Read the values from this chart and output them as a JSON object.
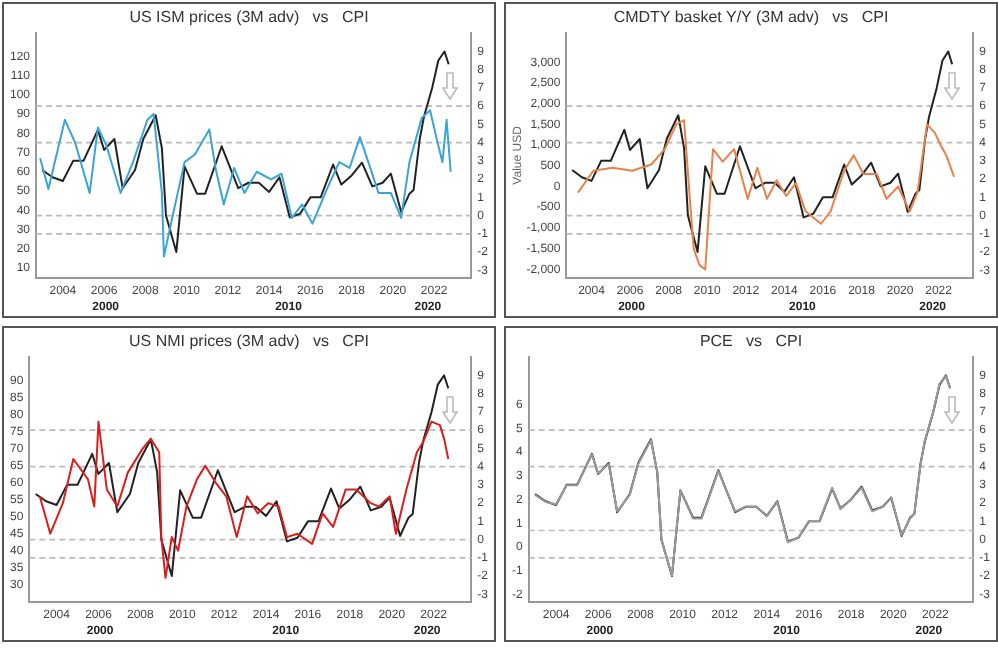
{
  "chart_data": [
    {
      "type": "line",
      "title": "US ISM prices (3M adv)   vs   CPI",
      "marker": "none",
      "xlim": [
        2002.7,
        2023.8
      ],
      "xticks": [
        2004,
        2006,
        2008,
        2010,
        2012,
        2014,
        2016,
        2018,
        2020,
        2022
      ],
      "annotations": [
        "2000",
        "2010",
        "2020"
      ],
      "ylim": [
        5,
        132
      ],
      "yticks": [
        10,
        20,
        30,
        40,
        50,
        60,
        70,
        80,
        90,
        100,
        110,
        120
      ],
      "y2lim": [
        -3.4,
        10
      ],
      "y2ticks": [
        -3,
        -2,
        -1,
        0,
        1,
        2,
        3,
        4,
        5,
        6,
        7,
        8,
        9
      ],
      "ref_lines": [
        {
          "axis": "y2",
          "value": 6,
          "color": "#bbbbbb",
          "line_style": "dashed"
        },
        {
          "axis": "y2",
          "value": 4,
          "color": "#bbbbbb",
          "line_style": "dashed"
        },
        {
          "axis": "y2",
          "value": 0,
          "color": "#bbbbbb",
          "line_style": "dashed"
        },
        {
          "axis": "y2",
          "value": -1,
          "color": "#bbbbbb",
          "line_style": "dashed"
        }
      ],
      "series": [
        {
          "color": "#3aa3d8",
          "x": [
            2002.9,
            2003.3,
            2004.1,
            2004.6,
            2005.3,
            2005.7,
            2006.1,
            2006.8,
            2007.4,
            2008.1,
            2008.4,
            2008.8,
            2008.9,
            2009.3,
            2009.9,
            2010.4,
            2011.1,
            2011.4,
            2011.8,
            2012.3,
            2012.8,
            2013.4,
            2014.1,
            2014.6,
            2015.1,
            2015.6,
            2016.1,
            2016.8,
            2017.4,
            2017.9,
            2018.4,
            2018.9,
            2019.3,
            2019.9,
            2020.4,
            2020.8,
            2021.4,
            2021.8,
            2022.1,
            2022.4,
            2022.6,
            2022.8
          ],
          "values": [
            67,
            51,
            87,
            75,
            49,
            83,
            74,
            49,
            65,
            87,
            90,
            49,
            16,
            36,
            65,
            69,
            82,
            62,
            43,
            62,
            49,
            60,
            56,
            59,
            36,
            43,
            33,
            51,
            65,
            62,
            78,
            62,
            49,
            49,
            36,
            65,
            88,
            92,
            78,
            65,
            87,
            60
          ]
        },
        {
          "color": "#222222",
          "axis": "y2",
          "x": [
            2003.0,
            2003.5,
            2004.0,
            2004.5,
            2005.0,
            2005.7,
            2006.0,
            2006.5,
            2006.9,
            2007.5,
            2007.9,
            2008.5,
            2008.8,
            2009.0,
            2009.5,
            2009.9,
            2010.5,
            2010.9,
            2011.7,
            2012.5,
            2013.0,
            2013.5,
            2014.0,
            2014.5,
            2015.0,
            2015.5,
            2016.0,
            2016.5,
            2017.1,
            2017.5,
            2018.0,
            2018.5,
            2019.0,
            2019.5,
            2019.9,
            2020.4,
            2020.8,
            2021.0,
            2021.3,
            2021.5,
            2021.9,
            2022.2,
            2022.5,
            2022.7
          ],
          "values": [
            2.5,
            2.1,
            1.9,
            3.0,
            3.0,
            4.7,
            3.6,
            4.2,
            1.5,
            2.5,
            4.2,
            5.5,
            3.7,
            0.0,
            -2.0,
            2.7,
            1.2,
            1.2,
            3.8,
            1.5,
            1.8,
            1.8,
            1.3,
            2.1,
            -0.1,
            0.1,
            1.0,
            1.0,
            2.8,
            1.7,
            2.2,
            2.9,
            1.6,
            1.8,
            2.3,
            0.2,
            1.2,
            1.4,
            4.2,
            5.4,
            7.0,
            8.5,
            9.0,
            8.3
          ]
        }
      ]
    },
    {
      "type": "line",
      "title": "CMDTY basket Y/Y (3M adv)   vs   CPI",
      "ylabel": "Value USD",
      "marker": "none",
      "xlim": [
        2002.7,
        2023.8
      ],
      "xticks": [
        2004,
        2006,
        2008,
        2010,
        2012,
        2014,
        2016,
        2018,
        2020,
        2022
      ],
      "annotations": [
        "2000",
        "2010",
        "2020"
      ],
      "ylim": [
        -2200,
        3700
      ],
      "yticks": [
        {
          "value": -2000,
          "label": "-2,000"
        },
        {
          "value": -1500,
          "label": "-1,500"
        },
        {
          "value": -1000,
          "label": "-1,000"
        },
        -500,
        0,
        500,
        {
          "value": 1000,
          "label": "1,000"
        },
        {
          "value": 1500,
          "label": "1,500"
        },
        {
          "value": 2000,
          "label": "2,000"
        },
        {
          "value": 2500,
          "label": "2,500"
        },
        {
          "value": 3000,
          "label": "3,000"
        }
      ],
      "y2lim": [
        -3.4,
        10
      ],
      "y2ticks": [
        -3,
        -2,
        -1,
        0,
        1,
        2,
        3,
        4,
        5,
        6,
        7,
        8,
        9
      ],
      "ref_lines": [
        {
          "axis": "y2",
          "value": 6,
          "color": "#bbbbbb",
          "line_style": "dashed"
        },
        {
          "axis": "y2",
          "value": 4,
          "color": "#bbbbbb",
          "line_style": "dashed"
        },
        {
          "axis": "y2",
          "value": 0,
          "color": "#bbbbbb",
          "line_style": "dashed"
        },
        {
          "axis": "y2",
          "value": -1,
          "color": "#bbbbbb",
          "line_style": "dashed"
        }
      ],
      "series": [
        {
          "color": "#e8824a",
          "x": [
            2003.3,
            2004.1,
            2005.1,
            2006.1,
            2007.1,
            2007.8,
            2008.4,
            2008.8,
            2009.1,
            2009.3,
            2009.6,
            2009.9,
            2010.3,
            2010.8,
            2011.4,
            2012.1,
            2012.6,
            2013.1,
            2013.6,
            2014.1,
            2014.6,
            2015.1,
            2015.9,
            2016.4,
            2017.1,
            2017.6,
            2018.1,
            2018.8,
            2019.3,
            2019.9,
            2020.5,
            2020.9,
            2021.4,
            2021.8,
            2022.1,
            2022.4,
            2022.8
          ],
          "values": [
            -150,
            380,
            450,
            380,
            530,
            900,
            1500,
            1600,
            -300,
            -1500,
            -1900,
            -2000,
            900,
            600,
            900,
            -300,
            450,
            -300,
            150,
            -230,
            80,
            -600,
            -900,
            -600,
            380,
            750,
            300,
            300,
            -300,
            0,
            -600,
            -150,
            1500,
            1300,
            1000,
            750,
            230
          ]
        },
        {
          "color": "#222222",
          "axis": "y2",
          "x": [
            2003.0,
            2003.5,
            2004.0,
            2004.5,
            2005.0,
            2005.7,
            2006.0,
            2006.5,
            2006.9,
            2007.5,
            2007.9,
            2008.5,
            2008.8,
            2009.0,
            2009.5,
            2009.9,
            2010.5,
            2010.9,
            2011.7,
            2012.5,
            2013.0,
            2013.5,
            2014.0,
            2014.5,
            2015.0,
            2015.5,
            2016.0,
            2016.5,
            2017.1,
            2017.5,
            2018.0,
            2018.5,
            2019.0,
            2019.5,
            2019.9,
            2020.4,
            2020.8,
            2021.0,
            2021.3,
            2021.5,
            2021.9,
            2022.2,
            2022.5,
            2022.7
          ],
          "values": [
            2.5,
            2.1,
            1.9,
            3.0,
            3.0,
            4.7,
            3.6,
            4.2,
            1.5,
            2.5,
            4.2,
            5.5,
            3.7,
            0.0,
            -2.0,
            2.7,
            1.2,
            1.2,
            3.8,
            1.5,
            1.8,
            1.8,
            1.3,
            2.1,
            -0.1,
            0.1,
            1.0,
            1.0,
            2.8,
            1.7,
            2.2,
            2.9,
            1.6,
            1.8,
            2.3,
            0.2,
            1.2,
            1.4,
            4.2,
            5.4,
            7.0,
            8.5,
            9.0,
            8.3
          ]
        }
      ]
    },
    {
      "type": "line",
      "title": "US NMI prices (3M adv)   vs   CPI",
      "marker": "none",
      "xlim": [
        2002.7,
        2023.8
      ],
      "xticks": [
        2004,
        2006,
        2008,
        2010,
        2012,
        2014,
        2016,
        2018,
        2020,
        2022
      ],
      "annotations": [
        "2000",
        "2010",
        "2020"
      ],
      "ylim": [
        25,
        97
      ],
      "yticks": [
        30,
        35,
        40,
        45,
        50,
        55,
        60,
        65,
        70,
        75,
        80,
        85,
        90
      ],
      "y2lim": [
        -3.4,
        10
      ],
      "y2ticks": [
        -3,
        -2,
        -1,
        0,
        1,
        2,
        3,
        4,
        5,
        6,
        7,
        8,
        9
      ],
      "ref_lines": [
        {
          "axis": "y2",
          "value": 6,
          "color": "#bbbbbb",
          "line_style": "dashed"
        },
        {
          "axis": "y2",
          "value": 4,
          "color": "#bbbbbb",
          "line_style": "dashed"
        },
        {
          "axis": "y2",
          "value": 0,
          "color": "#bbbbbb",
          "line_style": "dashed"
        },
        {
          "axis": "y2",
          "value": -1,
          "color": "#bbbbbb",
          "line_style": "dashed"
        }
      ],
      "series": [
        {
          "color": "#d91e1e",
          "x": [
            2003.2,
            2003.7,
            2004.3,
            2004.8,
            2005.5,
            2005.8,
            2006.0,
            2006.4,
            2006.9,
            2007.4,
            2008.1,
            2008.5,
            2008.9,
            2009.0,
            2009.2,
            2009.5,
            2009.8,
            2010.2,
            2010.7,
            2011.1,
            2011.6,
            2012.1,
            2012.6,
            2013.1,
            2013.6,
            2014.1,
            2014.6,
            2015.0,
            2015.5,
            2016.2,
            2016.7,
            2017.2,
            2017.8,
            2018.3,
            2019.0,
            2019.4,
            2019.9,
            2020.2,
            2020.7,
            2021.2,
            2021.5,
            2021.9,
            2022.3,
            2022.5,
            2022.7
          ],
          "values": [
            56,
            45,
            54,
            67,
            61,
            53,
            78,
            58,
            53,
            63,
            70,
            73,
            69,
            44,
            32,
            44,
            40,
            53,
            61,
            65,
            60,
            56,
            44,
            56,
            51,
            54,
            53,
            44,
            45,
            42,
            51,
            47,
            58,
            58,
            54,
            53,
            56,
            45,
            58,
            69,
            72,
            78,
            77,
            73,
            67
          ]
        },
        {
          "color": "#222222",
          "axis": "y2",
          "x": [
            2003.0,
            2003.5,
            2004.0,
            2004.5,
            2005.0,
            2005.7,
            2006.0,
            2006.5,
            2006.9,
            2007.5,
            2007.9,
            2008.5,
            2008.8,
            2009.0,
            2009.5,
            2009.9,
            2010.5,
            2010.9,
            2011.7,
            2012.5,
            2013.0,
            2013.5,
            2014.0,
            2014.5,
            2015.0,
            2015.5,
            2016.0,
            2016.5,
            2017.1,
            2017.5,
            2018.0,
            2018.5,
            2019.0,
            2019.5,
            2019.9,
            2020.4,
            2020.8,
            2021.0,
            2021.3,
            2021.5,
            2021.9,
            2022.2,
            2022.5,
            2022.7
          ],
          "values": [
            2.5,
            2.1,
            1.9,
            3.0,
            3.0,
            4.7,
            3.6,
            4.2,
            1.5,
            2.5,
            4.2,
            5.5,
            3.7,
            0.0,
            -2.0,
            2.7,
            1.2,
            1.2,
            3.8,
            1.5,
            1.8,
            1.8,
            1.3,
            2.1,
            -0.1,
            0.1,
            1.0,
            1.0,
            2.8,
            1.7,
            2.2,
            2.9,
            1.6,
            1.8,
            2.3,
            0.2,
            1.2,
            1.4,
            4.2,
            5.4,
            7.0,
            8.5,
            9.0,
            8.3
          ]
        }
      ]
    },
    {
      "type": "line",
      "title": "PCE   vs   CPI",
      "marker": "none",
      "xlim": [
        2002.7,
        2023.8
      ],
      "xticks": [
        2004,
        2006,
        2008,
        2010,
        2012,
        2014,
        2016,
        2018,
        2020,
        2022
      ],
      "annotations": [
        "2000",
        "2010",
        "2020"
      ],
      "ylim": [
        -2.3,
        8
      ],
      "yticks": [
        -2,
        -1,
        0,
        1,
        2,
        3,
        4,
        5,
        6
      ],
      "y2lim": [
        -3.4,
        10
      ],
      "y2ticks": [
        -3,
        -2,
        -1,
        0,
        1,
        2,
        3,
        4,
        5,
        6,
        7,
        8,
        9
      ],
      "ref_lines": [
        {
          "axis": "y2",
          "value": 6,
          "color": "#bbbbbb",
          "line_style": "dashed"
        },
        {
          "axis": "y2",
          "value": 4,
          "color": "#bbbbbb",
          "line_style": "dashed"
        },
        {
          "axis": "y2",
          "value": 0.5,
          "color": "#bbbbbb",
          "line_style": "dashed"
        },
        {
          "axis": "y2",
          "value": -1,
          "color": "#bbbbbb",
          "line_style": "dashed"
        }
      ],
      "series": [
        {
          "color": "#9a9a9a",
          "x": [
            2003.0,
            2003.5,
            2004.0,
            2004.5,
            2005.0,
            2005.7,
            2006.0,
            2006.5,
            2006.9,
            2007.5,
            2007.9,
            2008.5,
            2008.8,
            2009.0,
            2009.5,
            2009.9,
            2010.5,
            2010.9,
            2011.7,
            2012.5,
            2013.0,
            2013.5,
            2014.0,
            2014.5,
            2015.0,
            2015.5,
            2016.0,
            2016.5,
            2017.1,
            2017.5,
            2018.0,
            2018.5,
            2019.0,
            2019.5,
            2019.9,
            2020.4,
            2020.8,
            2021.0,
            2021.3,
            2021.5,
            2021.9,
            2022.2,
            2022.5,
            2022.7
          ],
          "values": [
            2.2,
            1.9,
            1.8,
            2.6,
            2.6,
            3.9,
            3.1,
            3.5,
            1.5,
            2.2,
            3.5,
            4.5,
            3.2,
            0.3,
            -1.2,
            2.4,
            1.2,
            1.2,
            3.2,
            1.5,
            1.7,
            1.7,
            1.3,
            1.9,
            0.2,
            0.4,
            1.1,
            1.1,
            2.5,
            1.6,
            2.0,
            2.5,
            1.5,
            1.7,
            2.1,
            0.5,
            1.2,
            1.4,
            3.5,
            4.5,
            5.7,
            6.9,
            7.2,
            6.7
          ]
        },
        {
          "color": "#222222",
          "axis": "y2",
          "x": [
            2003.0,
            2003.5,
            2004.0,
            2004.5,
            2005.0,
            2005.7,
            2006.0,
            2006.5,
            2006.9,
            2007.5,
            2007.9,
            2008.5,
            2008.8,
            2009.0,
            2009.5,
            2009.9,
            2010.5,
            2010.9,
            2011.7,
            2012.5,
            2013.0,
            2013.5,
            2014.0,
            2014.5,
            2015.0,
            2015.5,
            2016.0,
            2016.5,
            2017.1,
            2017.5,
            2018.0,
            2018.5,
            2019.0,
            2019.5,
            2019.9,
            2020.4,
            2020.8,
            2021.0,
            2021.3,
            2021.5,
            2021.9,
            2022.2,
            2022.5,
            2022.7
          ],
          "values": [
            2.5,
            2.1,
            1.9,
            3.0,
            3.0,
            4.7,
            3.6,
            4.2,
            1.5,
            2.5,
            4.2,
            5.5,
            3.7,
            0.0,
            -2.0,
            2.7,
            1.2,
            1.2,
            3.8,
            1.5,
            1.8,
            1.8,
            1.3,
            2.1,
            -0.1,
            0.1,
            1.0,
            1.0,
            2.8,
            1.7,
            2.2,
            2.9,
            1.6,
            1.8,
            2.3,
            0.2,
            1.2,
            1.4,
            4.2,
            5.4,
            7.0,
            8.5,
            9.0,
            8.3
          ]
        }
      ]
    }
  ]
}
